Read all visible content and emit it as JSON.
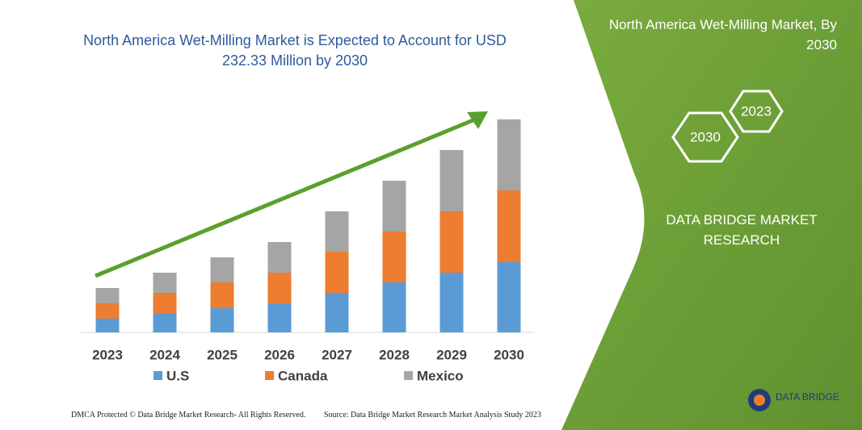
{
  "chart_data": {
    "type": "stacked_bar",
    "title": "North America Wet-Milling Market is Expected to Account for USD 232.33 Million by 2030",
    "categories": [
      "2023",
      "2024",
      "2025",
      "2026",
      "2027",
      "2028",
      "2029",
      "2030"
    ],
    "series": [
      {
        "name": "U.S",
        "color": "#5b9bd5",
        "values": [
          17,
          24,
          30,
          36,
          49,
          62,
          74,
          87
        ]
      },
      {
        "name": "Canada",
        "color": "#ed7d31",
        "values": [
          19,
          25,
          32,
          38,
          51,
          63,
          76,
          89
        ]
      },
      {
        "name": "Mexico",
        "color": "#a5a5a5",
        "values": [
          19,
          25,
          31,
          38,
          50,
          63,
          76,
          88
        ]
      }
    ]
  },
  "panel": {
    "heading": "North America Wet-Milling Market, By 2030",
    "hexagons": [
      "2023",
      "2030"
    ],
    "brand": "DATA BRIDGE MARKET RESEARCH"
  },
  "footer": {
    "left": "DMCA Protected © Data Bridge Market Research- All Rights Reserved.",
    "right": "Source: Data Bridge Market Research Market Analysis Study 2023",
    "logo": "DATA BRIDGE"
  }
}
